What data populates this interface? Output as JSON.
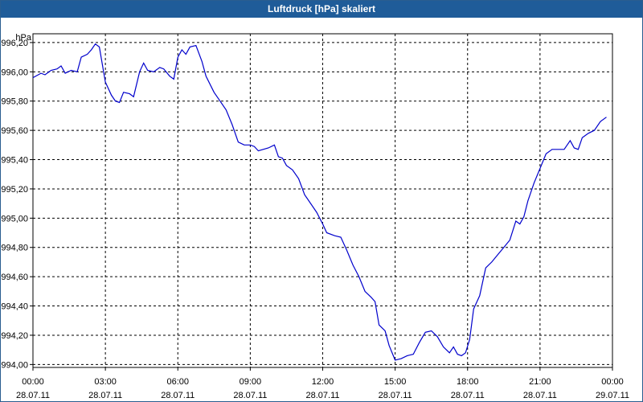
{
  "window": {
    "title": "Luftdruck [hPa] skaliert"
  },
  "colors": {
    "titlebar": "#1f5c99",
    "line": "#0000cc",
    "grid": "#000000"
  },
  "chart_data": {
    "type": "line",
    "title": "Luftdruck [hPa] skaliert",
    "ylabel": "hPa",
    "xlabel": "",
    "ylim": [
      993.98,
      996.26
    ],
    "xlim": [
      "28.07.11 00:00",
      "29.07.11 00:00"
    ],
    "grid": true,
    "y_ticks": [
      "994,00",
      "994,20",
      "994,40",
      "994,60",
      "994,80",
      "995,00",
      "995,20",
      "995,40",
      "995,60",
      "995,80",
      "996,00",
      "996,20"
    ],
    "x_ticks": [
      {
        "time": "00:00",
        "date": "28.07.11"
      },
      {
        "time": "03:00",
        "date": "28.07.11"
      },
      {
        "time": "06:00",
        "date": "28.07.11"
      },
      {
        "time": "09:00",
        "date": "28.07.11"
      },
      {
        "time": "12:00",
        "date": "28.07.11"
      },
      {
        "time": "15:00",
        "date": "28.07.11"
      },
      {
        "time": "18:00",
        "date": "28.07.11"
      },
      {
        "time": "21:00",
        "date": "28.07.11"
      },
      {
        "time": "00:00",
        "date": "29.07.11"
      }
    ],
    "series": [
      {
        "points": [
          [
            "28.07.11 00:00",
            995.96
          ],
          [
            "28.07.11 00:20",
            995.99
          ],
          [
            "28.07.11 00:30",
            995.98
          ],
          [
            "28.07.11 00:45",
            996.01
          ],
          [
            "28.07.11 01:00",
            996.02
          ],
          [
            "28.07.11 01:10",
            996.04
          ],
          [
            "28.07.11 01:20",
            995.99
          ],
          [
            "28.07.11 01:35",
            996.01
          ],
          [
            "28.07.11 01:50",
            996.0
          ],
          [
            "28.07.11 02:00",
            996.1
          ],
          [
            "28.07.11 02:15",
            996.12
          ],
          [
            "28.07.11 02:25",
            996.15
          ],
          [
            "28.07.11 02:35",
            996.19
          ],
          [
            "28.07.11 02:45",
            996.17
          ],
          [
            "28.07.11 03:00",
            995.93
          ],
          [
            "28.07.11 03:15",
            995.84
          ],
          [
            "28.07.11 03:25",
            995.8
          ],
          [
            "28.07.11 03:35",
            995.79
          ],
          [
            "28.07.11 03:45",
            995.86
          ],
          [
            "28.07.11 04:00",
            995.85
          ],
          [
            "28.07.11 04:10",
            995.83
          ],
          [
            "28.07.11 04:25",
            996.0
          ],
          [
            "28.07.11 04:35",
            996.06
          ],
          [
            "28.07.11 04:45",
            996.01
          ],
          [
            "28.07.11 05:00",
            996.0
          ],
          [
            "28.07.11 05:15",
            996.03
          ],
          [
            "28.07.11 05:25",
            996.02
          ],
          [
            "28.07.11 05:40",
            995.97
          ],
          [
            "28.07.11 05:50",
            995.95
          ],
          [
            "28.07.11 06:00",
            996.1
          ],
          [
            "28.07.11 06:10",
            996.15
          ],
          [
            "28.07.11 06:20",
            996.12
          ],
          [
            "28.07.11 06:30",
            996.17
          ],
          [
            "28.07.11 06:45",
            996.18
          ],
          [
            "28.07.11 07:00",
            996.07
          ],
          [
            "28.07.11 07:10",
            995.97
          ],
          [
            "28.07.11 07:30",
            995.86
          ],
          [
            "28.07.11 07:45",
            995.8
          ],
          [
            "28.07.11 08:00",
            995.74
          ],
          [
            "28.07.11 08:15",
            995.64
          ],
          [
            "28.07.11 08:30",
            995.52
          ],
          [
            "28.07.11 08:45",
            995.5
          ],
          [
            "28.07.11 09:00",
            995.5
          ],
          [
            "28.07.11 09:10",
            995.49
          ],
          [
            "28.07.11 09:20",
            995.46
          ],
          [
            "28.07.11 09:45",
            995.48
          ],
          [
            "28.07.11 10:00",
            995.5
          ],
          [
            "28.07.11 10:10",
            995.42
          ],
          [
            "28.07.11 10:20",
            995.41
          ],
          [
            "28.07.11 10:30",
            995.36
          ],
          [
            "28.07.11 10:45",
            995.33
          ],
          [
            "28.07.11 11:00",
            995.27
          ],
          [
            "28.07.11 11:15",
            995.16
          ],
          [
            "28.07.11 11:30",
            995.1
          ],
          [
            "28.07.11 11:45",
            995.04
          ],
          [
            "28.07.11 12:00",
            994.96
          ],
          [
            "28.07.11 12:10",
            994.9
          ],
          [
            "28.07.11 12:30",
            994.88
          ],
          [
            "28.07.11 12:45",
            994.87
          ],
          [
            "28.07.11 13:00",
            994.78
          ],
          [
            "28.07.11 13:15",
            994.68
          ],
          [
            "28.07.11 13:30",
            994.6
          ],
          [
            "28.07.11 13:45",
            994.5
          ],
          [
            "28.07.11 14:00",
            994.46
          ],
          [
            "28.07.11 14:10",
            994.43
          ],
          [
            "28.07.11 14:20",
            994.27
          ],
          [
            "28.07.11 14:35",
            994.23
          ],
          [
            "28.07.11 14:45",
            994.13
          ],
          [
            "28.07.11 15:00",
            994.03
          ],
          [
            "28.07.11 15:15",
            994.04
          ],
          [
            "28.07.11 15:30",
            994.06
          ],
          [
            "28.07.11 15:45",
            994.07
          ],
          [
            "28.07.11 16:00",
            994.15
          ],
          [
            "28.07.11 16:15",
            994.22
          ],
          [
            "28.07.11 16:30",
            994.23
          ],
          [
            "28.07.11 16:45",
            994.19
          ],
          [
            "28.07.11 17:00",
            994.12
          ],
          [
            "28.07.11 17:15",
            994.08
          ],
          [
            "28.07.11 17:25",
            994.12
          ],
          [
            "28.07.11 17:35",
            994.07
          ],
          [
            "28.07.11 17:45",
            994.06
          ],
          [
            "28.07.11 17:55",
            994.08
          ],
          [
            "28.07.11 18:05",
            994.17
          ],
          [
            "28.07.11 18:15",
            994.38
          ],
          [
            "28.07.11 18:30",
            994.47
          ],
          [
            "28.07.11 18:45",
            994.66
          ],
          [
            "28.07.11 19:00",
            994.7
          ],
          [
            "28.07.11 19:15",
            994.75
          ],
          [
            "28.07.11 19:30",
            994.8
          ],
          [
            "28.07.11 19:45",
            994.85
          ],
          [
            "28.07.11 20:00",
            994.98
          ],
          [
            "28.07.11 20:10",
            994.96
          ],
          [
            "28.07.11 20:20",
            995.01
          ],
          [
            "28.07.11 20:30",
            995.12
          ],
          [
            "28.07.11 20:45",
            995.24
          ],
          [
            "28.07.11 21:00",
            995.34
          ],
          [
            "28.07.11 21:15",
            995.44
          ],
          [
            "28.07.11 21:30",
            995.47
          ],
          [
            "28.07.11 21:45",
            995.47
          ],
          [
            "28.07.11 22:00",
            995.47
          ],
          [
            "28.07.11 22:15",
            995.53
          ],
          [
            "28.07.11 22:25",
            995.48
          ],
          [
            "28.07.11 22:35",
            995.47
          ],
          [
            "28.07.11 22:45",
            995.55
          ],
          [
            "28.07.11 23:00",
            995.58
          ],
          [
            "28.07.11 23:15",
            995.6
          ],
          [
            "28.07.11 23:30",
            995.66
          ],
          [
            "28.07.11 23:45",
            995.69
          ]
        ]
      }
    ]
  }
}
